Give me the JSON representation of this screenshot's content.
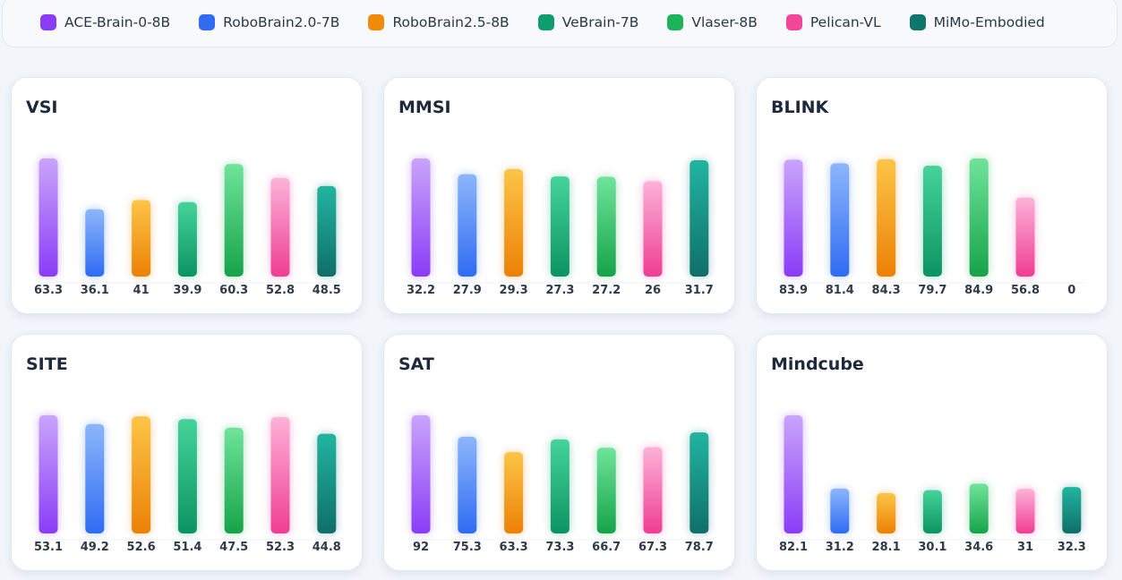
{
  "legend": [
    {
      "name": "ACE-Brain-0-8B",
      "color": "#8b3cf7"
    },
    {
      "name": "RoboBrain2.0-7B",
      "color": "#2f6cf3"
    },
    {
      "name": "RoboBrain2.5-8B",
      "color": "#f08a08"
    },
    {
      "name": "VeBrain-7B",
      "color": "#0f9d6e"
    },
    {
      "name": "Vlaser-8B",
      "color": "#1db35a"
    },
    {
      "name": "Pelican-VL",
      "color": "#f0479a"
    },
    {
      "name": "MiMo-Embodied",
      "color": "#0f766e"
    }
  ],
  "colors": {
    "ACE-Brain-0-8B": [
      "#c9a4fb",
      "#8b3cf7"
    ],
    "RoboBrain2.0-7B": [
      "#8cb6fb",
      "#2f6cf3"
    ],
    "RoboBrain2.5-8B": [
      "#fcc547",
      "#ec8106"
    ],
    "VeBrain-7B": [
      "#46d39a",
      "#0a9464"
    ],
    "Vlaser-8B": [
      "#6fe49a",
      "#16a34a"
    ],
    "Pelican-VL": [
      "#fcb2d8",
      "#f03d93"
    ],
    "MiMo-Embodied": [
      "#22b5a0",
      "#0f6f68"
    ]
  },
  "chart_data": [
    {
      "type": "bar",
      "title": "VSI",
      "categories": [
        "ACE-Brain-0-8B",
        "RoboBrain2.0-7B",
        "RoboBrain2.5-8B",
        "VeBrain-7B",
        "Vlaser-8B",
        "Pelican-VL",
        "MiMo-Embodied"
      ],
      "values": [
        63.3,
        36.1,
        41,
        39.9,
        60.3,
        52.8,
        48.5
      ],
      "value_labels": [
        "63.3",
        "36.1",
        "41",
        "39.9",
        "60.3",
        "52.8",
        "48.5"
      ]
    },
    {
      "type": "bar",
      "title": "MMSI",
      "categories": [
        "ACE-Brain-0-8B",
        "RoboBrain2.0-7B",
        "RoboBrain2.5-8B",
        "VeBrain-7B",
        "Vlaser-8B",
        "Pelican-VL",
        "MiMo-Embodied"
      ],
      "values": [
        32.2,
        27.9,
        29.3,
        27.3,
        27.2,
        26,
        31.7
      ],
      "value_labels": [
        "32.2",
        "27.9",
        "29.3",
        "27.3",
        "27.2",
        "26",
        "31.7"
      ]
    },
    {
      "type": "bar",
      "title": "BLINK",
      "categories": [
        "ACE-Brain-0-8B",
        "RoboBrain2.0-7B",
        "RoboBrain2.5-8B",
        "VeBrain-7B",
        "Vlaser-8B",
        "Pelican-VL",
        "MiMo-Embodied"
      ],
      "values": [
        83.9,
        81.4,
        84.3,
        79.7,
        84.9,
        56.8,
        0
      ],
      "value_labels": [
        "83.9",
        "81.4",
        "84.3",
        "79.7",
        "84.9",
        "56.8",
        "0"
      ]
    },
    {
      "type": "bar",
      "title": "SITE",
      "categories": [
        "ACE-Brain-0-8B",
        "RoboBrain2.0-7B",
        "RoboBrain2.5-8B",
        "VeBrain-7B",
        "Vlaser-8B",
        "Pelican-VL",
        "MiMo-Embodied"
      ],
      "values": [
        53.1,
        49.2,
        52.6,
        51.4,
        47.5,
        52.3,
        44.8
      ],
      "value_labels": [
        "53.1",
        "49.2",
        "52.6",
        "51.4",
        "47.5",
        "52.3",
        "44.8"
      ]
    },
    {
      "type": "bar",
      "title": "SAT",
      "categories": [
        "ACE-Brain-0-8B",
        "RoboBrain2.0-7B",
        "RoboBrain2.5-8B",
        "VeBrain-7B",
        "Vlaser-8B",
        "Pelican-VL",
        "MiMo-Embodied"
      ],
      "values": [
        92,
        75.3,
        63.3,
        73.3,
        66.7,
        67.3,
        78.7
      ],
      "value_labels": [
        "92",
        "75.3",
        "63.3",
        "73.3",
        "66.7",
        "67.3",
        "78.7"
      ]
    },
    {
      "type": "bar",
      "title": "Mindcube",
      "categories": [
        "ACE-Brain-0-8B",
        "RoboBrain2.0-7B",
        "RoboBrain2.5-8B",
        "VeBrain-7B",
        "Vlaser-8B",
        "Pelican-VL",
        "MiMo-Embodied"
      ],
      "values": [
        82.1,
        31.2,
        28.1,
        30.1,
        34.6,
        31,
        32.3
      ],
      "value_labels": [
        "82.1",
        "31.2",
        "28.1",
        "30.1",
        "34.6",
        "31",
        "32.3"
      ]
    }
  ]
}
